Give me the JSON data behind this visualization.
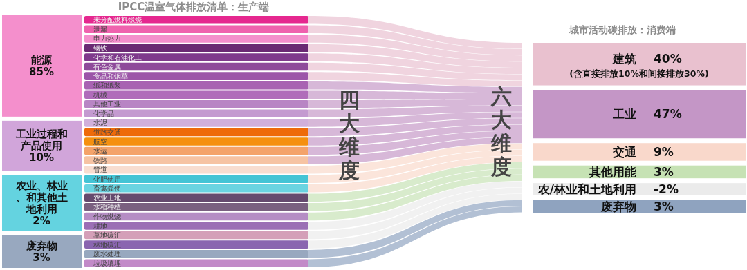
{
  "chart_data": [
    {
      "type": "other",
      "categories": [
        "能源",
        "工业过程和产品使用",
        "农业、林业、和其他土地利用",
        "废弃物"
      ],
      "values": [
        85,
        10,
        2,
        3
      ],
      "value_labels": [
        "85%",
        "10%",
        "2%",
        "3%"
      ],
      "colors": [
        "#f48fcc",
        "#d1a5da",
        "#64d3e0",
        "#98a8bf"
      ]
    },
    {
      "type": "other",
      "title": "IPCC温室气体排放清单：生产端",
      "annotations": [
        "四大维度",
        "六大维度"
      ],
      "categories": [
        "未分配燃料燃烧",
        "泄漏",
        "电力热力",
        "钢铁",
        "化学和石油化工",
        "有色金属",
        "食品和烟草",
        "纸和纸浆",
        "机械",
        "其他工业",
        "化学品",
        "水泥",
        "道路交通",
        "航空",
        "水运",
        "铁路",
        "管道",
        "化肥使用",
        "畜禽粪便",
        "农业土地",
        "水稻种植",
        "作物燃烧",
        "耕地",
        "草地碳汇",
        "林地碳汇",
        "废水处理",
        "垃圾填埋"
      ],
      "colors": [
        "#e5288f",
        "#ef62ae",
        "#f48fcc",
        "#6a2a73",
        "#7f3a8c",
        "#8e4a9a",
        "#9c55a8",
        "#a862b2",
        "#b06cba",
        "#b885c4",
        "#c49ad0",
        "#d1b0db",
        "#ee6a0a",
        "#f5900f",
        "#f4a36a",
        "#f6c3a3",
        "#f8ddd0",
        "#44c4d5",
        "#6ad4e1",
        "#654a6e",
        "#7a6080",
        "#b58dc4",
        "#9b6fb5",
        "#d49fb8",
        "#8a65b0",
        "#98a8bf",
        "#c28ac8"
      ]
    },
    {
      "type": "other",
      "title": "城市活动碳排放：消费端",
      "annotations": [
        "(含直接排放10%和间接排放30%)"
      ],
      "categories": [
        "建筑",
        "工业",
        "交通",
        "其他用能",
        "农/林业和土地利用",
        "废弃物"
      ],
      "values": [
        40,
        47,
        9,
        3,
        -2,
        3
      ],
      "value_labels": [
        "40%",
        "47%",
        "9%",
        "3%",
        "-2%",
        "3%"
      ],
      "colors": [
        "#e9c1cf",
        "#c496c6",
        "#f9d8cb",
        "#c6e2b4",
        "#ebebeb",
        "#8fa3bf"
      ]
    }
  ]
}
